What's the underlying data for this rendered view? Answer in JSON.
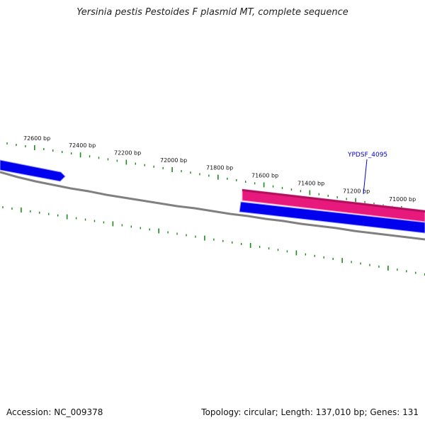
{
  "title": "Yersinia pestis Pestoides F plasmid MT, complete sequence",
  "footer": {
    "accession": "Accession: NC_009378",
    "summary": "Topology: circular; Length: 137,010 bp; Genes: 131"
  },
  "ruler": {
    "labels": [
      "72600 bp",
      "72400 bp",
      "72200 bp",
      "72000 bp",
      "71800 bp",
      "71600 bp",
      "71400 bp",
      "71200 bp",
      "71000 bp"
    ]
  },
  "genes": [
    {
      "label": "YPDSF_4095"
    }
  ],
  "colors": {
    "forward_gene": "#e8197d",
    "reverse_gene": "#0000ee",
    "backbone": "#808080",
    "ticks": "#1a8a1a",
    "gene_label": "#0000cc"
  }
}
